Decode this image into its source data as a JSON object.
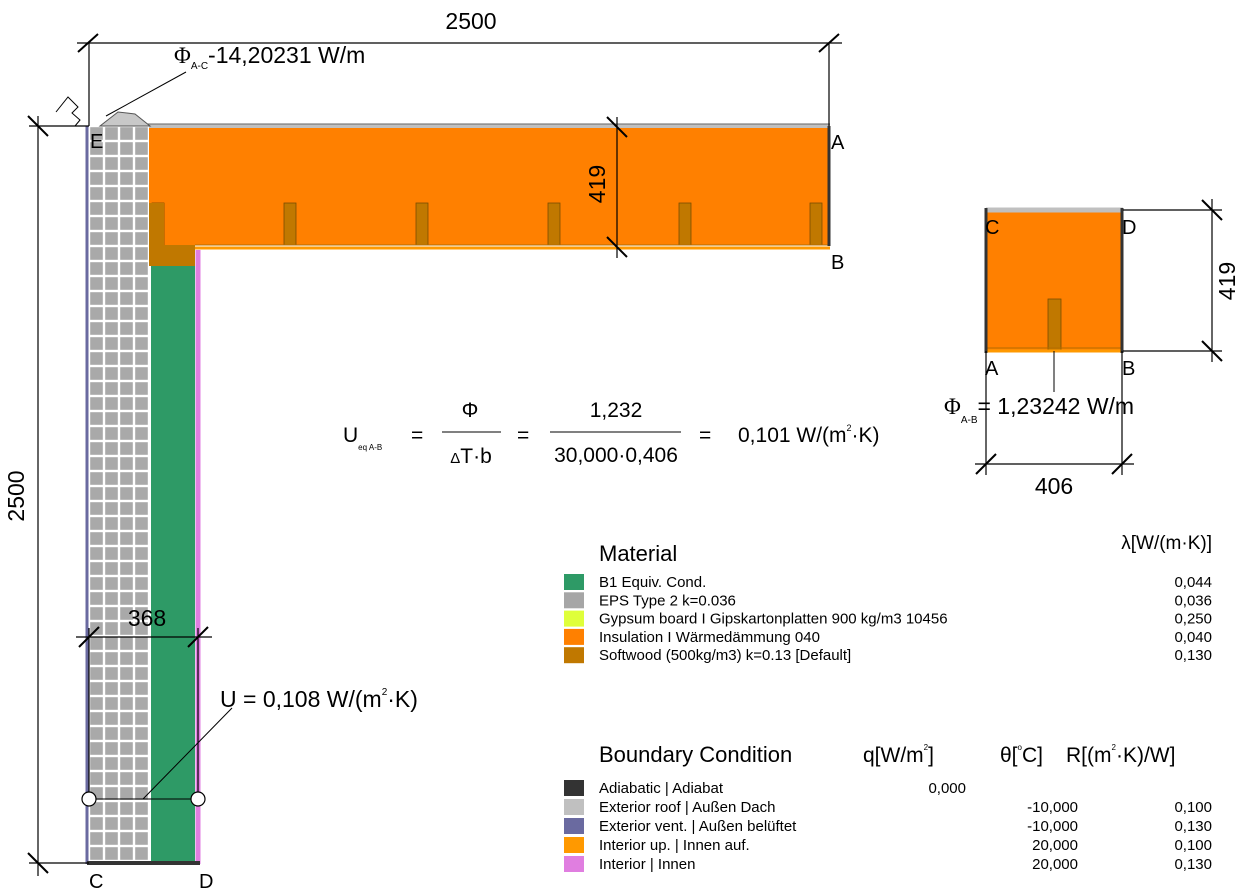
{
  "drawing": {
    "dim_top": "2500",
    "dim_left": "2500",
    "dim_roof_thickness": "419",
    "dim_wall_thickness": "368",
    "flux_AC": "-14,20231 W/m",
    "flux_AC_symbol": "Φ",
    "flux_AC_sub": "A-C",
    "point_A": "A",
    "point_B": "B",
    "point_C": "C",
    "point_D": "D",
    "point_E": "E",
    "u_wall_prefix": "U = 0,108 W/(m",
    "u_wall_exp": "2",
    "u_wall_suffix": "·K)"
  },
  "detail": {
    "dim_height": "419",
    "dim_width": "406",
    "point_A": "A",
    "point_B": "B",
    "point_C": "C",
    "point_D": "D",
    "flux_symbol": "Φ",
    "flux_sub": "A-B",
    "flux_value": "= 1,23242 W/m"
  },
  "formula": {
    "lhs": "U",
    "lhs_sub": "eq A-B",
    "eq1": "=",
    "num1": "Φ",
    "den1_delta": "Δ",
    "den1_rest": "T·b",
    "eq2": "=",
    "num2": "1,232",
    "den2": "30,000·0,406",
    "eq3": "=",
    "result_prefix": "0,101 W/(m",
    "result_exp": "2",
    "result_suffix": "·K)"
  },
  "materials": {
    "title": "Material",
    "unit_header": "λ[W/(m·K)]",
    "items": [
      {
        "name": "B1 Equiv. Cond.",
        "value": "0,044",
        "color": "#2e9a66"
      },
      {
        "name": "EPS Type 2  k=0.036",
        "value": "0,036",
        "color": "#a6a6a6"
      },
      {
        "name": "Gypsum board  I  Gipskartonplatten 900 kg/m3 10456",
        "value": "0,250",
        "color": "#dfff3a"
      },
      {
        "name": "Insulation  I  Wärmedämmung 040",
        "value": "0,040",
        "color": "#ff8000"
      },
      {
        "name": "Softwood (500kg/m3)  k=0.13 [Default]",
        "value": "0,130",
        "color": "#c07800"
      }
    ]
  },
  "boundary": {
    "title": "Boundary Condition",
    "q_header": "q[W/m",
    "q_exp": "2",
    "q_close": "]",
    "theta_header": "θ[",
    "theta_deg": "o",
    "theta_close": "C]",
    "r_header": "R[(m",
    "r_exp": "2",
    "r_close": "·K)/W]",
    "items": [
      {
        "name": "Adiabatic |  Adiabat",
        "q": "0,000",
        "theta": "",
        "r": "",
        "color": "#333333"
      },
      {
        "name": "Exterior roof  |  Außen Dach",
        "q": "",
        "theta": "-10,000",
        "r": "0,100",
        "color": "#c0c0c0"
      },
      {
        "name": "Exterior vent. |  Außen belüftet",
        "q": "",
        "theta": "-10,000",
        "r": "0,130",
        "color": "#6a6aa0"
      },
      {
        "name": "Interior up. |  Innen auf.",
        "q": "",
        "theta": "20,000",
        "r": "0,100",
        "color": "#ff9900"
      },
      {
        "name": "Interior |  Innen",
        "q": "",
        "theta": "20,000",
        "r": "0,130",
        "color": "#e07ee0"
      }
    ]
  },
  "colors": {
    "insulation": "#ff8000",
    "softwood": "#c07800",
    "equiv": "#2e9a66",
    "eps": "#a6a6a6",
    "gypsum": "#dfff3a",
    "interior": "#e07ee0",
    "interior_up": "#ff9900",
    "exterior_vent": "#6a6aa0",
    "exterior_roof": "#c0c0c0",
    "adiabatic": "#333333"
  }
}
